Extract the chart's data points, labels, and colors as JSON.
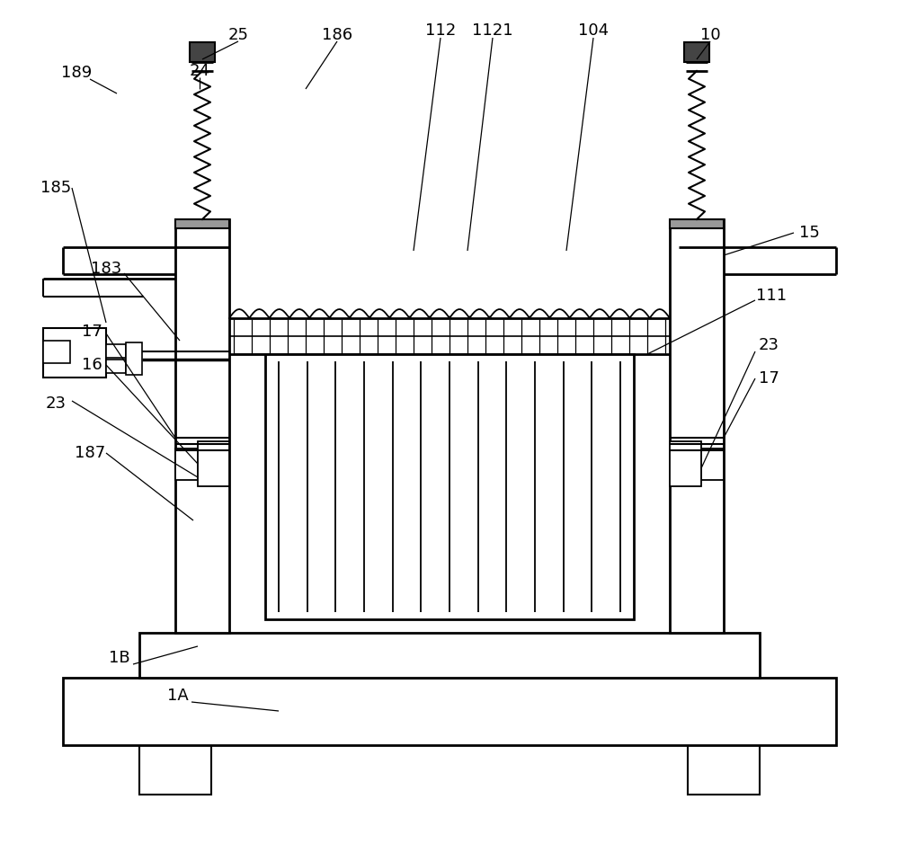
{
  "bg_color": "#ffffff",
  "line_color": "#000000",
  "figure_width": 10.0,
  "figure_height": 9.39
}
